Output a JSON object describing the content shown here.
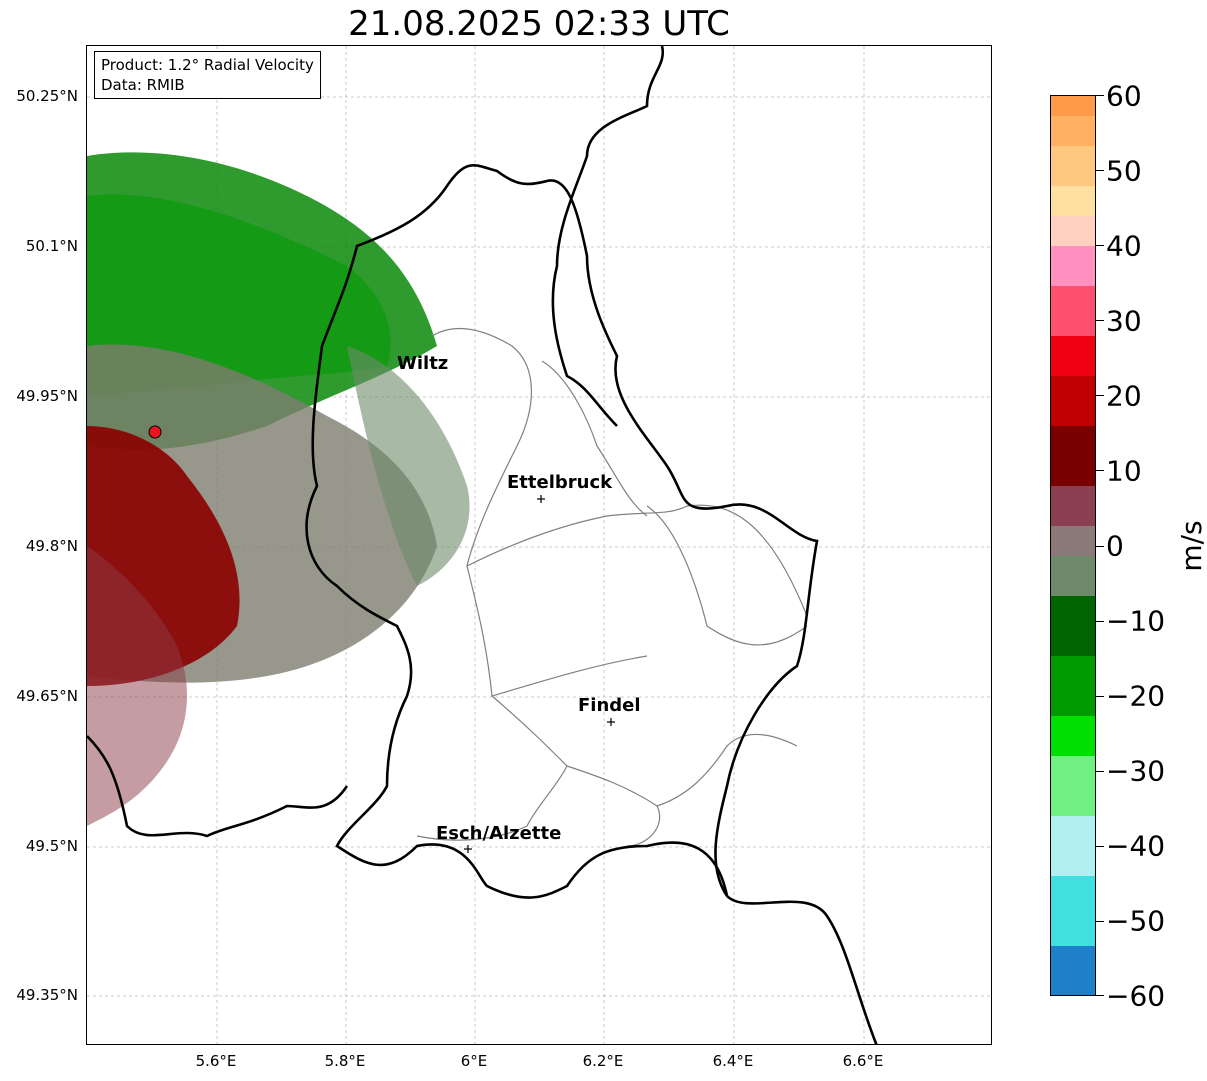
{
  "title": "21.08.2025 02:33 UTC",
  "info": {
    "product": "Product: 1.2° Radial Velocity",
    "data": "Data: RMIB"
  },
  "axes": {
    "lat_ticks": [
      "50.25°N",
      "50.1°N",
      "49.95°N",
      "49.8°N",
      "49.65°N",
      "49.5°N",
      "49.35°N"
    ],
    "lon_ticks": [
      "5.6°E",
      "5.8°E",
      "6°E",
      "6.2°E",
      "6.4°E",
      "6.6°E"
    ]
  },
  "cities": [
    {
      "name": "Wiltz",
      "marker": false
    },
    {
      "name": "Ettelbruck",
      "marker": true
    },
    {
      "name": "Findel",
      "marker": true
    },
    {
      "name": "Esch/Alzette",
      "marker": true
    }
  ],
  "radar_site": {
    "marker": "red-circle",
    "color": "#e8141e"
  },
  "colorbar": {
    "unit": "m/s",
    "min": -60,
    "max": 60,
    "ticks": [
      "60",
      "50",
      "40",
      "30",
      "20",
      "10",
      "0",
      "−10",
      "−20",
      "−30",
      "−40",
      "−50",
      "−60"
    ]
  },
  "colors": {
    "inbound_green": "#0a8a0a",
    "outbound_red": "#8b0000",
    "near_zero_grey": "#7d7d6e",
    "border": "#000000",
    "canton_line": "#808080"
  }
}
